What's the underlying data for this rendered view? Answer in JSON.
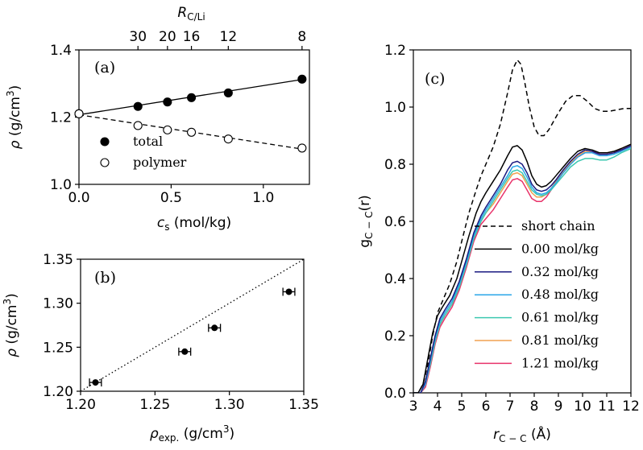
{
  "chart_data": [
    {
      "id": "a",
      "type": "scatter",
      "panel_label": "(a)",
      "xlabel": "c_s (mol/kg)",
      "ylabel": "ρ (g/cm3)",
      "x2label": "R_C/Li",
      "xlim": [
        0,
        1.25
      ],
      "ylim": [
        1.0,
        1.4
      ],
      "xticks": [
        0.0,
        0.5,
        1.0
      ],
      "xtick_labels": [
        "0.0",
        "0.5",
        "1.0"
      ],
      "yticks": [
        1.0,
        1.2,
        1.4
      ],
      "ytick_labels": [
        "1.0",
        "1.2",
        "1.4"
      ],
      "top_ticks": [
        {
          "x": 0.32,
          "label": "30"
        },
        {
          "x": 0.48,
          "label": "20"
        },
        {
          "x": 0.61,
          "label": "16"
        },
        {
          "x": 0.81,
          "label": "12"
        },
        {
          "x": 1.21,
          "label": "8"
        }
      ],
      "legend": "lower-left",
      "series": [
        {
          "name": "total",
          "marker": "filled-circle",
          "line": "solid",
          "x": [
            0.0,
            0.32,
            0.48,
            0.61,
            0.81,
            1.21
          ],
          "y": [
            1.21,
            1.232,
            1.245,
            1.258,
            1.272,
            1.313
          ],
          "fit": [
            [
              0.0,
              1.207
            ],
            [
              1.21,
              1.312
            ]
          ]
        },
        {
          "name": "polymer",
          "marker": "open-circle",
          "line": "dashed",
          "x": [
            0.0,
            0.32,
            0.48,
            0.61,
            0.81,
            1.21
          ],
          "y": [
            1.21,
            1.175,
            1.162,
            1.155,
            1.135,
            1.108
          ],
          "fit": [
            [
              0.0,
              1.207
            ],
            [
              1.21,
              1.105
            ]
          ]
        }
      ]
    },
    {
      "id": "b",
      "type": "scatter",
      "panel_label": "(b)",
      "xlabel": "ρexp. (g/cm3)",
      "ylabel": "ρ (g/cm3)",
      "xlim": [
        1.2,
        1.35
      ],
      "ylim": [
        1.2,
        1.35
      ],
      "xticks": [
        1.2,
        1.25,
        1.3,
        1.35
      ],
      "xtick_labels": [
        "1.20",
        "1.25",
        "1.30",
        "1.35"
      ],
      "yticks": [
        1.2,
        1.25,
        1.3,
        1.35
      ],
      "ytick_labels": [
        "1.20",
        "1.25",
        "1.30",
        "1.35"
      ],
      "reference_line": "y=x dotted",
      "points": [
        {
          "x": 1.21,
          "y": 1.21,
          "xerr": 0.004
        },
        {
          "x": 1.27,
          "y": 1.245,
          "xerr": 0.004
        },
        {
          "x": 1.29,
          "y": 1.272,
          "xerr": 0.004
        },
        {
          "x": 1.34,
          "y": 1.313,
          "xerr": 0.004
        }
      ]
    },
    {
      "id": "c",
      "type": "line",
      "panel_label": "(c)",
      "xlabel": "r_C−C (Å)",
      "ylabel": "g_C−C(r)",
      "xlim": [
        3,
        12
      ],
      "ylim": [
        0,
        1.2
      ],
      "xticks": [
        3,
        4,
        5,
        6,
        7,
        8,
        9,
        10,
        11,
        12
      ],
      "xtick_labels": [
        "3",
        "4",
        "5",
        "6",
        "7",
        "8",
        "9",
        "10",
        "11",
        "12"
      ],
      "yticks": [
        0.0,
        0.2,
        0.4,
        0.6,
        0.8,
        1.0,
        1.2
      ],
      "ytick_labels": [
        "0.0",
        "0.2",
        "0.4",
        "0.6",
        "0.8",
        "1.0",
        "1.2"
      ],
      "legend": "lower-right",
      "series": [
        {
          "name": "short chain",
          "color": "#000000",
          "dash": "dashed",
          "x": [
            3.0,
            3.2,
            3.4,
            3.6,
            3.8,
            4.0,
            4.2,
            4.5,
            4.8,
            5.0,
            5.3,
            5.6,
            5.8,
            6.0,
            6.3,
            6.6,
            6.9,
            7.1,
            7.3,
            7.45,
            7.6,
            7.8,
            8.0,
            8.2,
            8.4,
            8.6,
            8.8,
            9.0,
            9.3,
            9.6,
            9.9,
            10.2,
            10.5,
            10.8,
            11.1,
            11.4,
            11.7,
            12.0
          ],
          "y": [
            0.0,
            0.0,
            0.03,
            0.1,
            0.2,
            0.28,
            0.32,
            0.38,
            0.46,
            0.53,
            0.63,
            0.71,
            0.76,
            0.8,
            0.86,
            0.94,
            1.05,
            1.13,
            1.165,
            1.15,
            1.09,
            1.0,
            0.93,
            0.9,
            0.9,
            0.92,
            0.95,
            0.98,
            1.02,
            1.04,
            1.04,
            1.02,
            0.995,
            0.985,
            0.985,
            0.99,
            0.995,
            0.995
          ]
        },
        {
          "name": "0.00 mol/kg",
          "color": "#000000",
          "dash": "solid",
          "x": [
            3.0,
            3.2,
            3.4,
            3.6,
            3.8,
            4.0,
            4.2,
            4.5,
            4.8,
            5.0,
            5.3,
            5.6,
            5.8,
            6.0,
            6.3,
            6.6,
            6.9,
            7.1,
            7.3,
            7.5,
            7.7,
            7.9,
            8.1,
            8.3,
            8.5,
            8.7,
            8.9,
            9.2,
            9.5,
            9.8,
            10.1,
            10.4,
            10.7,
            11.0,
            11.3,
            11.6,
            12.0
          ],
          "y": [
            0.0,
            0.0,
            0.03,
            0.12,
            0.21,
            0.27,
            0.3,
            0.34,
            0.4,
            0.46,
            0.55,
            0.63,
            0.67,
            0.7,
            0.74,
            0.78,
            0.83,
            0.86,
            0.865,
            0.85,
            0.81,
            0.76,
            0.73,
            0.72,
            0.725,
            0.74,
            0.76,
            0.79,
            0.82,
            0.845,
            0.855,
            0.85,
            0.84,
            0.84,
            0.845,
            0.855,
            0.87
          ]
        },
        {
          "name": "0.32 mol/kg",
          "color": "#1a1a80",
          "dash": "solid",
          "x": [
            3.0,
            3.3,
            3.5,
            3.7,
            3.9,
            4.1,
            4.3,
            4.6,
            4.9,
            5.2,
            5.5,
            5.8,
            6.0,
            6.3,
            6.6,
            6.9,
            7.1,
            7.3,
            7.5,
            7.7,
            7.9,
            8.1,
            8.3,
            8.5,
            8.7,
            8.9,
            9.2,
            9.5,
            9.8,
            10.1,
            10.4,
            10.7,
            11.0,
            11.3,
            11.6,
            12.0
          ],
          "y": [
            0.0,
            0.0,
            0.04,
            0.12,
            0.2,
            0.26,
            0.29,
            0.33,
            0.39,
            0.47,
            0.56,
            0.62,
            0.65,
            0.69,
            0.73,
            0.78,
            0.805,
            0.81,
            0.8,
            0.77,
            0.73,
            0.71,
            0.705,
            0.71,
            0.725,
            0.745,
            0.78,
            0.81,
            0.835,
            0.85,
            0.845,
            0.835,
            0.835,
            0.84,
            0.85,
            0.865
          ]
        },
        {
          "name": "0.48 mol/kg",
          "color": "#2aa6e8",
          "dash": "solid",
          "x": [
            3.0,
            3.3,
            3.5,
            3.7,
            3.9,
            4.1,
            4.3,
            4.6,
            4.9,
            5.2,
            5.5,
            5.8,
            6.0,
            6.3,
            6.6,
            6.9,
            7.1,
            7.3,
            7.5,
            7.7,
            7.9,
            8.1,
            8.3,
            8.5,
            8.7,
            8.9,
            9.2,
            9.5,
            9.8,
            10.1,
            10.4,
            10.7,
            11.0,
            11.3,
            11.6,
            12.0
          ],
          "y": [
            0.0,
            0.0,
            0.03,
            0.11,
            0.19,
            0.25,
            0.28,
            0.32,
            0.38,
            0.46,
            0.55,
            0.61,
            0.64,
            0.68,
            0.72,
            0.76,
            0.79,
            0.795,
            0.785,
            0.755,
            0.72,
            0.7,
            0.695,
            0.7,
            0.715,
            0.735,
            0.77,
            0.8,
            0.825,
            0.84,
            0.84,
            0.83,
            0.83,
            0.835,
            0.845,
            0.86
          ]
        },
        {
          "name": "0.61 mol/kg",
          "color": "#3cc8b0",
          "dash": "solid",
          "x": [
            3.0,
            3.3,
            3.5,
            3.7,
            3.9,
            4.1,
            4.3,
            4.6,
            4.9,
            5.2,
            5.5,
            5.8,
            6.0,
            6.3,
            6.6,
            6.9,
            7.1,
            7.3,
            7.5,
            7.7,
            7.9,
            8.1,
            8.3,
            8.5,
            8.7,
            8.9,
            9.2,
            9.5,
            9.8,
            10.1,
            10.4,
            10.7,
            11.0,
            11.3,
            11.6,
            12.0
          ],
          "y": [
            0.0,
            0.0,
            0.03,
            0.1,
            0.18,
            0.24,
            0.27,
            0.31,
            0.37,
            0.45,
            0.54,
            0.6,
            0.63,
            0.67,
            0.71,
            0.75,
            0.775,
            0.78,
            0.77,
            0.74,
            0.71,
            0.695,
            0.69,
            0.695,
            0.71,
            0.73,
            0.76,
            0.79,
            0.81,
            0.82,
            0.82,
            0.815,
            0.815,
            0.825,
            0.84,
            0.855
          ]
        },
        {
          "name": "0.81 mol/kg",
          "color": "#f0a050",
          "dash": "solid",
          "x": [
            3.0,
            3.3,
            3.5,
            3.7,
            3.9,
            4.1,
            4.3,
            4.6,
            4.9,
            5.2,
            5.5,
            5.8,
            6.0,
            6.3,
            6.6,
            6.9,
            7.1,
            7.3,
            7.5,
            7.7,
            7.9,
            8.1,
            8.3,
            8.5,
            8.7,
            8.9,
            9.2,
            9.5,
            9.8,
            10.1,
            10.4,
            10.7,
            11.0,
            11.3,
            11.6,
            12.0
          ],
          "y": [
            0.0,
            0.0,
            0.03,
            0.1,
            0.18,
            0.24,
            0.27,
            0.31,
            0.37,
            0.45,
            0.54,
            0.6,
            0.63,
            0.66,
            0.7,
            0.74,
            0.765,
            0.77,
            0.76,
            0.73,
            0.7,
            0.685,
            0.685,
            0.695,
            0.715,
            0.74,
            0.775,
            0.805,
            0.83,
            0.845,
            0.845,
            0.84,
            0.84,
            0.845,
            0.855,
            0.87
          ]
        },
        {
          "name": "1.21 mol/kg",
          "color": "#e8336a",
          "dash": "solid",
          "x": [
            3.0,
            3.3,
            3.5,
            3.7,
            3.9,
            4.1,
            4.3,
            4.6,
            4.9,
            5.2,
            5.5,
            5.8,
            6.0,
            6.3,
            6.6,
            6.9,
            7.1,
            7.3,
            7.5,
            7.7,
            7.9,
            8.1,
            8.3,
            8.5,
            8.7,
            8.9,
            9.2,
            9.5,
            9.8,
            10.1,
            10.4,
            10.7,
            11.0,
            11.3,
            11.6,
            12.0
          ],
          "y": [
            0.0,
            0.0,
            0.02,
            0.09,
            0.17,
            0.23,
            0.26,
            0.3,
            0.36,
            0.44,
            0.53,
            0.59,
            0.61,
            0.64,
            0.68,
            0.72,
            0.745,
            0.75,
            0.74,
            0.71,
            0.68,
            0.67,
            0.67,
            0.685,
            0.71,
            0.735,
            0.77,
            0.8,
            0.825,
            0.84,
            0.84,
            0.835,
            0.835,
            0.84,
            0.85,
            0.86
          ]
        }
      ]
    }
  ]
}
